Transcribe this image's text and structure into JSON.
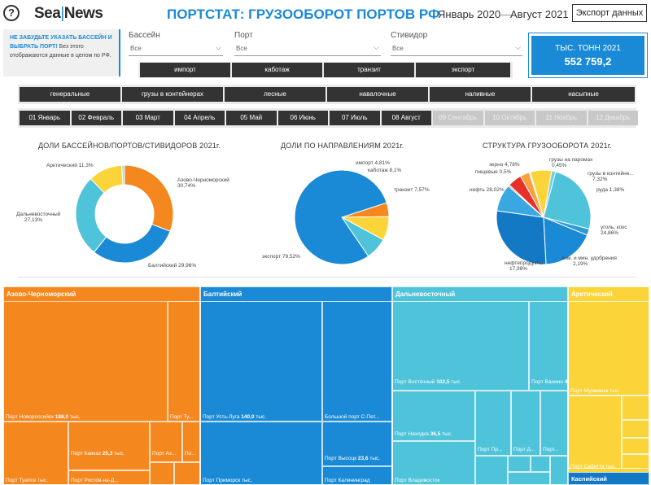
{
  "header": {
    "help": "?",
    "logo_part1": "Sea",
    "logo_part2": "News",
    "title": "ПОРТСТАТ: ГРУЗООБОРОТ ПОРТОВ РФ",
    "date_from": "Январь 2020",
    "date_sep": "—",
    "date_to": "Август 2021",
    "export_label": "Экспорт данных"
  },
  "notice": {
    "bold": "НЕ ЗАБУДЬТЕ УКАЗАТЬ БАССЕЙН И ВЫБРАТЬ ПОРТ!",
    "text": " Без этого отображаются данные в целом по РФ."
  },
  "filters": [
    {
      "label": "Бассейн",
      "value": "Все"
    },
    {
      "label": "Порт",
      "value": "Все"
    },
    {
      "label": "Стивидор",
      "value": "Все"
    }
  ],
  "directions": [
    "импорт",
    "каботаж",
    "транзит",
    "экспорт"
  ],
  "kpi": {
    "label": "ТЫС. ТОНН 2021",
    "value": "552 759,2"
  },
  "cargo_types": [
    "генеральные",
    "грузы в контейнерах",
    "лесные",
    "навалочные",
    "наливные",
    "насыпные"
  ],
  "months": [
    {
      "label": "01 Январь",
      "active": true
    },
    {
      "label": "02 Февраль",
      "active": true
    },
    {
      "label": "03 Март",
      "active": true
    },
    {
      "label": "04 Апрель",
      "active": true
    },
    {
      "label": "05 Май",
      "active": true
    },
    {
      "label": "06 Июнь",
      "active": true
    },
    {
      "label": "07 Июль",
      "active": true
    },
    {
      "label": "08 Август",
      "active": true
    },
    {
      "label": "09 Сентябрь",
      "active": false
    },
    {
      "label": "10 Октябрь",
      "active": false
    },
    {
      "label": "11 Ноябрь",
      "active": false
    },
    {
      "label": "12 Декабрь",
      "active": false
    }
  ],
  "colors": {
    "blue": "#1a8ad6",
    "orange": "#f5871f",
    "cyan": "#4ec3d9",
    "yellow": "#fbd43a",
    "dark": "#333333"
  },
  "chart_data": [
    {
      "type": "pie",
      "title": "ДОЛИ БАССЕЙНОВ/ПОРТОВ/СТИВИДОРОВ 2021г.",
      "donut": true,
      "slices": [
        {
          "name": "Азово-Черноморский",
          "label": "30,74%",
          "value": 30.74,
          "color": "#f5871f"
        },
        {
          "name": "Балтийский",
          "label": "29,96%",
          "value": 29.96,
          "color": "#1a8ad6"
        },
        {
          "name": "Дальневосточный",
          "label": "27,13%",
          "value": 27.13,
          "color": "#4ec3d9"
        },
        {
          "name": "Арктический",
          "label": "11,3%",
          "value": 11.3,
          "color": "#fbd43a"
        },
        {
          "name": "",
          "label": "",
          "value": 0.87,
          "color": "#a3d8e8"
        }
      ]
    },
    {
      "type": "pie",
      "title": "ДОЛИ ПО НАПРАВЛЕНИЯМ 2021г.",
      "donut": false,
      "slices": [
        {
          "name": "импорт",
          "label": "4,81%",
          "value": 4.81,
          "color": "#f5871f"
        },
        {
          "name": "каботаж",
          "label": "8,1%",
          "value": 8.1,
          "color": "#fbd43a"
        },
        {
          "name": "транзит",
          "label": "7,57%",
          "value": 7.57,
          "color": "#4ec3d9"
        },
        {
          "name": "экспорт",
          "label": "79,52%",
          "value": 79.52,
          "color": "#1a8ad6"
        }
      ]
    },
    {
      "type": "pie",
      "title": "СТРУКТУРА ГРУЗООБОРОТА 2021г.",
      "donut": false,
      "slices": [
        {
          "name": "грузы на паромах",
          "label": "0,45%",
          "value": 0.45,
          "color": "#b7e3f0"
        },
        {
          "name": "грузы в контейне...",
          "label": "7,32%",
          "value": 7.32,
          "color": "#fbd43a"
        },
        {
          "name": "руда",
          "label": "1,38%",
          "value": 1.38,
          "color": "#6fd0e3"
        },
        {
          "name": "уголь, кокс",
          "label": "24,86%",
          "value": 24.86,
          "color": "#4ec3d9"
        },
        {
          "name": "хим. и мин. удобрения",
          "label": "2,19%",
          "value": 2.19,
          "color": "#2a9bd9"
        },
        {
          "name": "нефтепродукты",
          "label": "17,98%",
          "value": 17.98,
          "color": "#1a8ad6"
        },
        {
          "name": "нефть",
          "label": "28,02%",
          "value": 28.02,
          "color": "#1479c4"
        },
        {
          "name": "",
          "label": "",
          "value": 9.35,
          "color": "#3aa8e0"
        },
        {
          "name": "пищевые",
          "label": "0,5%",
          "value": 0.5,
          "color": "#f5871f"
        },
        {
          "name": "зерно",
          "label": "4,78%",
          "value": 4.78,
          "color": "#e8302a"
        },
        {
          "name": "",
          "label": "",
          "value": 3.17,
          "color": "#f9a13a"
        }
      ]
    }
  ],
  "treemap": {
    "basins": [
      {
        "name": "Азово-Черноморский",
        "color": "#f5871f"
      },
      {
        "name": "Балтийский",
        "color": "#1a8ad6"
      },
      {
        "name": "Дальневосточный",
        "color": "#4ec3d9"
      },
      {
        "name": "Арктический",
        "color": "#fbd43a"
      }
    ],
    "extra_basin": "Каспийский",
    "labels": [
      {
        "prefix": "Порт Новороссийск ",
        "value": "188,0",
        "suffix": " тыс."
      },
      {
        "prefix": "Порт Ту...",
        "value": "",
        "suffix": ""
      },
      {
        "prefix": "Порт Кавказ ",
        "value": "25,3",
        "suffix": " тыс."
      },
      {
        "prefix": "Порт Аз...",
        "value": "",
        "suffix": ""
      },
      {
        "prefix": "По...",
        "value": "",
        "suffix": ""
      },
      {
        "prefix": "Порт Туапсе ",
        "value": "",
        "suffix": "тыс."
      },
      {
        "prefix": "Порт Ростов-на-Д... ",
        "value": "",
        "suffix": ""
      },
      {
        "prefix": "Порт Усть-Луга ",
        "value": "140,0",
        "suffix": " тыс."
      },
      {
        "prefix": "Большой порт С-Пет...",
        "value": "",
        "suffix": ""
      },
      {
        "prefix": "Порт Высоцк ",
        "value": "23,6",
        "suffix": " тыс."
      },
      {
        "prefix": "Порт Приморск ",
        "value": "",
        "suffix": "тыс."
      },
      {
        "prefix": "Порт Калининград ",
        "value": "",
        "suffix": ""
      },
      {
        "prefix": "Порт Восточный ",
        "value": "102,5",
        "suffix": " тыс."
      },
      {
        "prefix": "Порт Ванино ",
        "value": "46...",
        "suffix": ""
      },
      {
        "prefix": "Порт Находка ",
        "value": "36,5",
        "suffix": " тыс."
      },
      {
        "prefix": "Порт Пр...",
        "value": "",
        "suffix": ""
      },
      {
        "prefix": "Порт Д...",
        "value": "",
        "suffix": ""
      },
      {
        "prefix": "Порт...",
        "value": "",
        "suffix": ""
      },
      {
        "prefix": "Порт Владивосток ",
        "value": "",
        "suffix": ""
      },
      {
        "prefix": "Порт Мурманск ",
        "value": "",
        "suffix": "тыс."
      },
      {
        "prefix": "Порт Сабетта ",
        "value": "",
        "suffix": "тыс."
      }
    ]
  }
}
